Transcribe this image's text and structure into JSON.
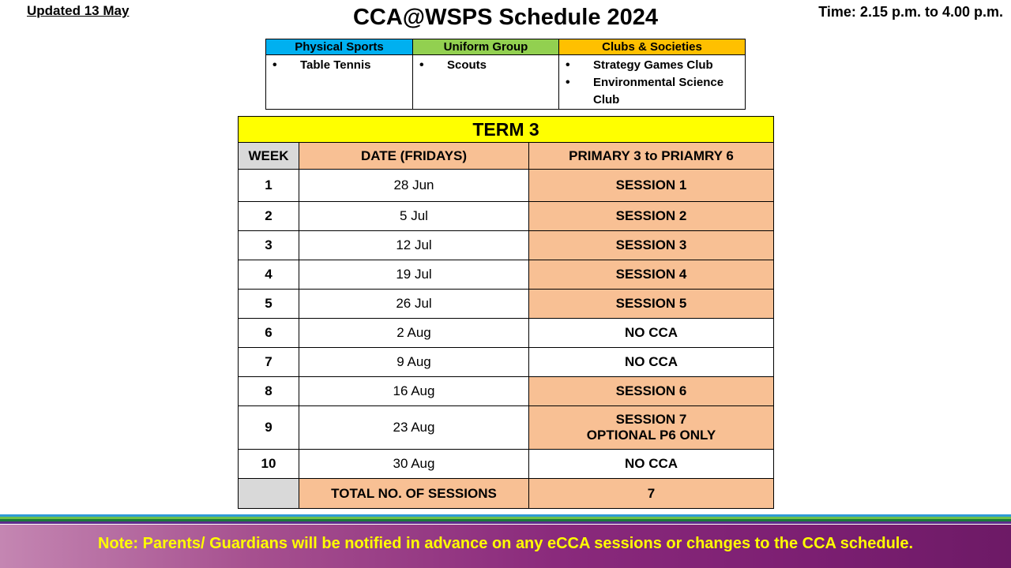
{
  "header": {
    "updated": "Updated 13 May",
    "title": "CCA@WSPS Schedule 2024",
    "time": "Time: 2.15 p.m. to 4.00 p.m."
  },
  "cca_categories": [
    {
      "name": "Physical Sports",
      "color": "#00b0f0",
      "items": [
        "Table Tennis"
      ]
    },
    {
      "name": "Uniform Group",
      "color": "#92d050",
      "items": [
        "Scouts"
      ]
    },
    {
      "name": "Clubs & Societies",
      "color": "#ffc000",
      "items": [
        "Strategy Games Club",
        "Environmental Science Club"
      ]
    }
  ],
  "term": {
    "title": "TERM 3",
    "headers": {
      "week": "WEEK",
      "date": "DATE (FRIDAYS)",
      "level": "PRIMARY 3 to PRIAMRY 6"
    },
    "rows": [
      {
        "week": "1",
        "date": "28 Jun",
        "session": "SESSION 1",
        "highlight": true
      },
      {
        "week": "2",
        "date": "5 Jul",
        "session": "SESSION 2",
        "highlight": true
      },
      {
        "week": "3",
        "date": "12 Jul",
        "session": "SESSION 3",
        "highlight": true
      },
      {
        "week": "4",
        "date": "19 Jul",
        "session": "SESSION 4",
        "highlight": true
      },
      {
        "week": "5",
        "date": "26 Jul",
        "session": "SESSION 5",
        "highlight": true
      },
      {
        "week": "6",
        "date": "2 Aug",
        "session": "NO CCA",
        "highlight": false
      },
      {
        "week": "7",
        "date": "9 Aug",
        "session": "NO CCA",
        "highlight": false
      },
      {
        "week": "8",
        "date": "16 Aug",
        "session": "SESSION 6",
        "highlight": true
      },
      {
        "week": "9",
        "date": "23 Aug",
        "session": "SESSION 7",
        "session_note": "OPTIONAL P6 ONLY",
        "highlight": true
      },
      {
        "week": "10",
        "date": "30 Aug",
        "session": "NO CCA",
        "highlight": false
      }
    ],
    "total_label": "TOTAL NO. OF SESSIONS",
    "total_value": "7"
  },
  "footer": {
    "note": "Note: Parents/ Guardians will be notified in advance on any eCCA sessions or changes to the CCA schedule.",
    "note_color": "#ffff00",
    "stripe_colors": [
      "#2e9bd6",
      "#6cc04a",
      "#1a7a3a",
      "#5b2d8a"
    ]
  },
  "colors": {
    "term_title_bg": "#ffff00",
    "peach": "#f8c094",
    "grey": "#d9d9d9"
  }
}
